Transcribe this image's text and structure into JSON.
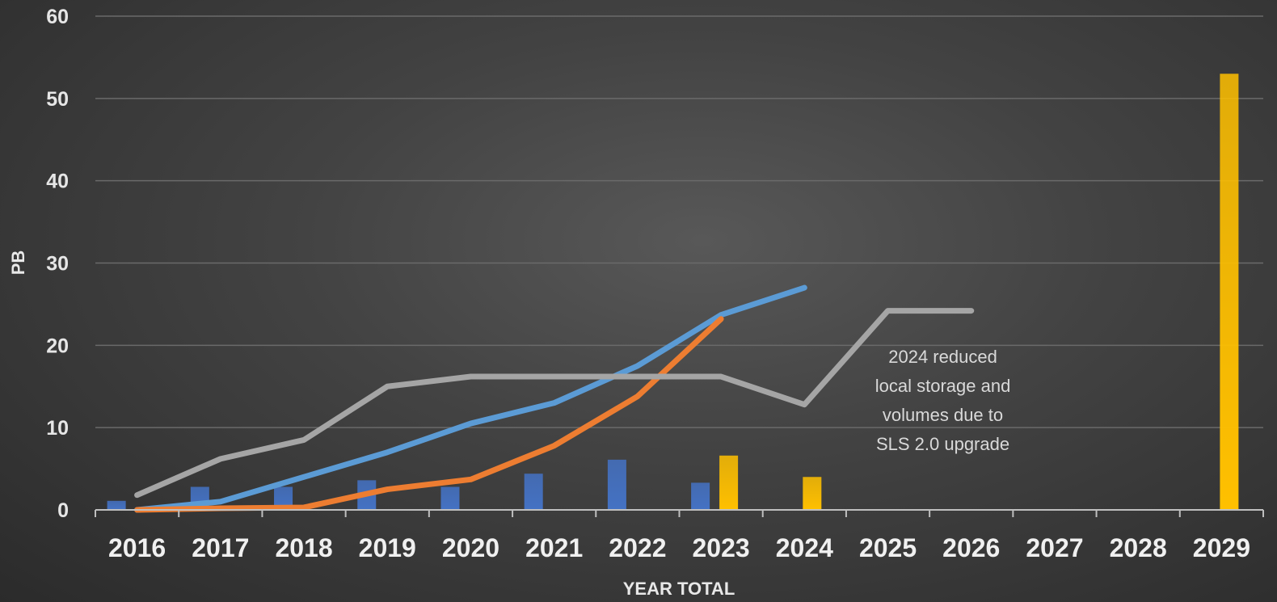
{
  "chart_data": {
    "type": "bar",
    "title": "",
    "xlabel": "YEAR TOTAL",
    "ylabel": "PB",
    "ylim": [
      0,
      60
    ],
    "yticks": [
      "0",
      "10",
      "20",
      "30",
      "40",
      "50",
      "60"
    ],
    "grid": true,
    "categories": [
      "2016",
      "2017",
      "2018",
      "2019",
      "2020",
      "2021",
      "2022",
      "2023",
      "2024",
      "2025",
      "2026",
      "2027",
      "2028",
      "2029"
    ],
    "bar_series": [
      {
        "color": "#4472c4",
        "values": [
          1.1,
          2.8,
          2.8,
          3.6,
          2.8,
          4.4,
          6.1,
          3.3,
          null,
          null,
          null,
          null,
          null,
          null
        ]
      },
      {
        "color": "#ffc000",
        "values": [
          null,
          null,
          null,
          null,
          null,
          null,
          null,
          6.6,
          4.0,
          null,
          null,
          null,
          null,
          53
        ]
      }
    ],
    "line_series": [
      {
        "color": "#5b9bd5",
        "values": [
          0,
          1,
          4,
          7,
          10.5,
          13,
          17.5,
          23.7,
          27,
          null,
          null,
          null,
          null,
          null
        ]
      },
      {
        "color": "#ed7d31",
        "values": [
          0,
          0.2,
          0.3,
          2.5,
          3.7,
          7.8,
          13.8,
          23.2,
          null,
          null,
          null,
          null,
          null,
          null
        ]
      },
      {
        "color": "#a5a5a5",
        "values": [
          1.8,
          6.2,
          8.5,
          15,
          16.2,
          16.2,
          16.2,
          16.2,
          12.8,
          24.2,
          24.2,
          null,
          null,
          null
        ]
      }
    ],
    "annotation": {
      "lines": [
        "2024 reduced",
        "local storage and",
        "volumes due to",
        "SLS 2.0 upgrade"
      ],
      "anchor_category": "2025",
      "anchor_value": 17.5
    }
  }
}
